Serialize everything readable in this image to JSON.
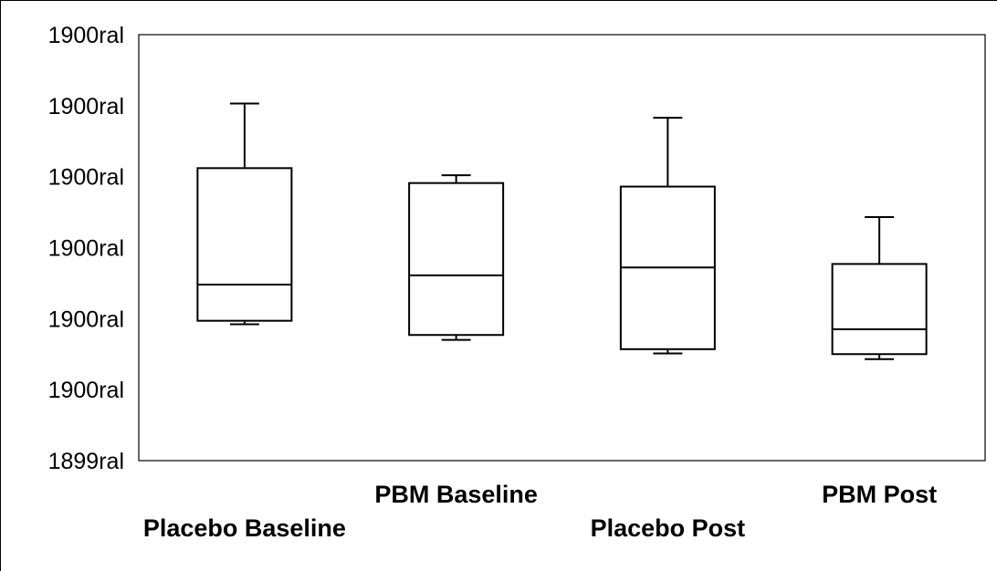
{
  "chart_data": {
    "type": "box",
    "title": "",
    "xlabel": "",
    "ylabel": "",
    "y_tick_labels": [
      "1900ral",
      "1900ral",
      "1900ral",
      "1900ral",
      "1900ral",
      "1900ral",
      "1899ral"
    ],
    "ylim": [
      0,
      6
    ],
    "grid": false,
    "categories": [
      "Placebo Baseline",
      "PBM Baseline",
      "Placebo Post",
      "PBM Post"
    ],
    "series": [
      {
        "boxes": [
          {
            "min": 1.92,
            "q1": 1.97,
            "median": 2.48,
            "q3": 4.12,
            "max": 5.03
          },
          {
            "min": 1.7,
            "q1": 1.77,
            "median": 2.61,
            "q3": 3.91,
            "max": 4.02
          },
          {
            "min": 1.51,
            "q1": 1.57,
            "median": 2.72,
            "q3": 3.86,
            "max": 4.83
          },
          {
            "min": 1.43,
            "q1": 1.5,
            "median": 1.85,
            "q3": 2.77,
            "max": 3.43
          }
        ]
      }
    ]
  }
}
